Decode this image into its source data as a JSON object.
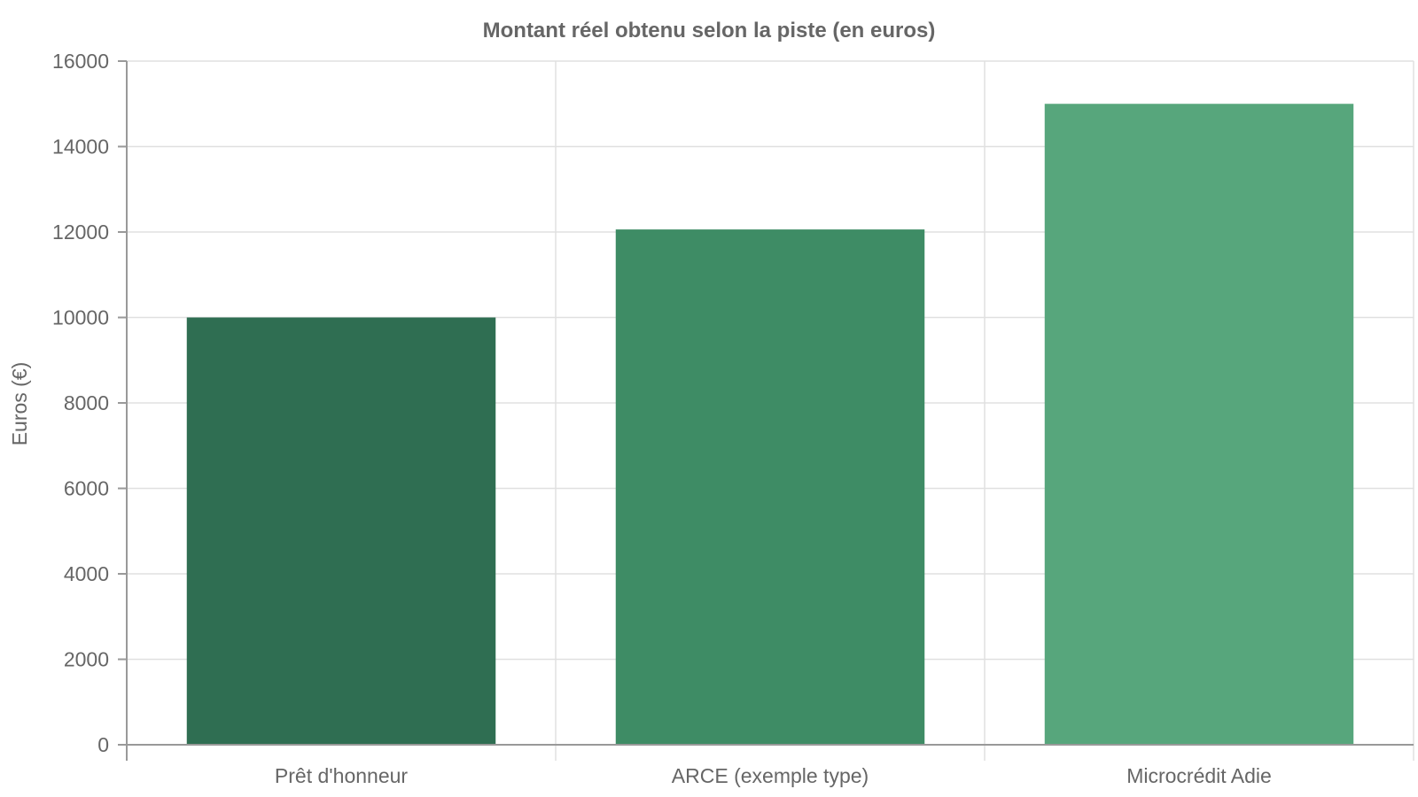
{
  "chart_data": {
    "type": "bar",
    "title": "Montant réel obtenu selon la piste (en euros)",
    "xlabel": "",
    "ylabel": "Euros (€)",
    "categories": [
      "Prêt d'honneur",
      "ARCE (exemple type)",
      "Microcrédit Adie"
    ],
    "values": [
      10000,
      12060,
      15000
    ],
    "colors": [
      "#2f6e52",
      "#3e8c65",
      "#57a67c"
    ],
    "ylim": [
      0,
      16000
    ],
    "yticks": [
      "0",
      "2000",
      "4000",
      "6000",
      "8000",
      "10000",
      "12000",
      "14000",
      "16000"
    ],
    "grid": true,
    "legend": "none"
  }
}
